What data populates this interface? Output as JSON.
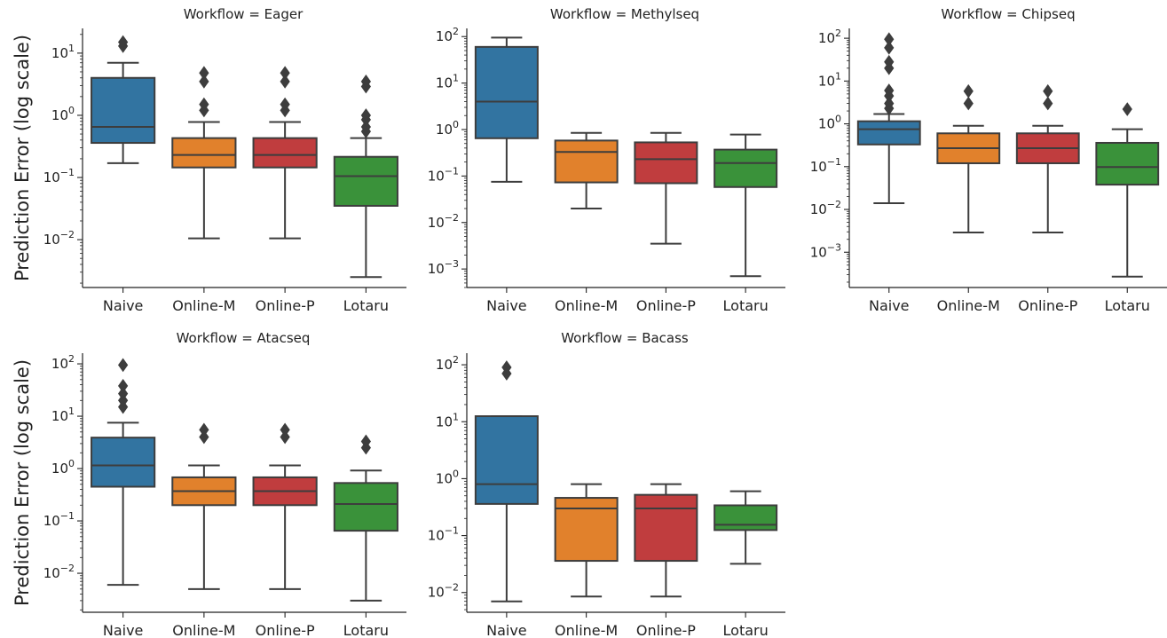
{
  "chart_data": [
    {
      "type": "box",
      "title": "Workflow = Eager",
      "ylabel": "Prediction Error (log scale)",
      "yscale": "log",
      "ylim": [
        0.0017,
        25
      ],
      "y_tick_labels": [
        "10^1",
        "10^0",
        "10^-1",
        "10^-2"
      ],
      "categories": [
        "Naive",
        "Online-M",
        "Online-P",
        "Lotaru"
      ],
      "colors": [
        "#3274a1",
        "#e1812c",
        "#c03d3e",
        "#3a923a"
      ],
      "boxes": [
        {
          "category": "Naive",
          "whislo": 0.17,
          "q1": 0.36,
          "med": 0.65,
          "q3": 4.0,
          "whishi": 7.0,
          "fliers": [
            13,
            15
          ]
        },
        {
          "category": "Online-M",
          "whislo": 0.0105,
          "q1": 0.145,
          "med": 0.23,
          "q3": 0.43,
          "whishi": 0.78,
          "fliers": [
            1.2,
            1.5,
            3.5,
            4.8
          ]
        },
        {
          "category": "Online-P",
          "whislo": 0.0105,
          "q1": 0.145,
          "med": 0.23,
          "q3": 0.43,
          "whishi": 0.78,
          "fliers": [
            1.2,
            1.5,
            3.5,
            4.8
          ]
        },
        {
          "category": "Lotaru",
          "whislo": 0.0025,
          "q1": 0.035,
          "med": 0.105,
          "q3": 0.215,
          "whishi": 0.43,
          "fliers": [
            0.55,
            0.65,
            0.85,
            1.0,
            2.9,
            3.5
          ]
        }
      ]
    },
    {
      "type": "box",
      "title": "Workflow = Methylseq",
      "ylabel": "",
      "yscale": "log",
      "ylim": [
        0.0004,
        150
      ],
      "y_tick_labels": [
        "10^2",
        "10^1",
        "10^0",
        "10^-1",
        "10^-2",
        "10^-3"
      ],
      "categories": [
        "Naive",
        "Online-M",
        "Online-P",
        "Lotaru"
      ],
      "colors": [
        "#3274a1",
        "#e1812c",
        "#c03d3e",
        "#3a923a"
      ],
      "boxes": [
        {
          "category": "Naive",
          "whislo": 0.075,
          "q1": 0.65,
          "med": 4.0,
          "q3": 60,
          "whishi": 95,
          "fliers": []
        },
        {
          "category": "Online-M",
          "whislo": 0.02,
          "q1": 0.073,
          "med": 0.33,
          "q3": 0.58,
          "whishi": 0.85,
          "fliers": []
        },
        {
          "category": "Online-P",
          "whislo": 0.0035,
          "q1": 0.07,
          "med": 0.23,
          "q3": 0.53,
          "whishi": 0.85,
          "fliers": []
        },
        {
          "category": "Lotaru",
          "whislo": 0.0007,
          "q1": 0.058,
          "med": 0.19,
          "q3": 0.37,
          "whishi": 0.78,
          "fliers": []
        }
      ]
    },
    {
      "type": "box",
      "title": "Workflow = Chipseq",
      "ylabel": "",
      "yscale": "log",
      "ylim": [
        0.00015,
        170
      ],
      "y_tick_labels": [
        "10^2",
        "10^1",
        "10^0",
        "10^-1",
        "10^-2",
        "10^-3"
      ],
      "categories": [
        "Naive",
        "Online-M",
        "Online-P",
        "Lotaru"
      ],
      "colors": [
        "#3274a1",
        "#e1812c",
        "#c03d3e",
        "#3a923a"
      ],
      "boxes": [
        {
          "category": "Naive",
          "whislo": 0.014,
          "q1": 0.33,
          "med": 0.75,
          "q3": 1.15,
          "whishi": 1.7,
          "fliers": [
            2.3,
            3.0,
            4.5,
            6.0,
            20,
            28,
            60,
            95
          ]
        },
        {
          "category": "Online-M",
          "whislo": 0.0029,
          "q1": 0.12,
          "med": 0.27,
          "q3": 0.6,
          "whishi": 0.9,
          "fliers": [
            3.0,
            5.8
          ]
        },
        {
          "category": "Online-P",
          "whislo": 0.0029,
          "q1": 0.12,
          "med": 0.27,
          "q3": 0.6,
          "whishi": 0.9,
          "fliers": [
            3.0,
            5.8
          ]
        },
        {
          "category": "Lotaru",
          "whislo": 0.00027,
          "q1": 0.038,
          "med": 0.098,
          "q3": 0.36,
          "whishi": 0.75,
          "fliers": [
            2.2
          ]
        }
      ]
    },
    {
      "type": "box",
      "title": "Workflow = Atacseq",
      "ylabel": "Prediction Error (log scale)",
      "yscale": "log",
      "ylim": [
        0.0018,
        160
      ],
      "y_tick_labels": [
        "10^2",
        "10^1",
        "10^0",
        "10^-1",
        "10^-2"
      ],
      "categories": [
        "Naive",
        "Online-M",
        "Online-P",
        "Lotaru"
      ],
      "colors": [
        "#3274a1",
        "#e1812c",
        "#c03d3e",
        "#3a923a"
      ],
      "boxes": [
        {
          "category": "Naive",
          "whislo": 0.006,
          "q1": 0.45,
          "med": 1.15,
          "q3": 3.9,
          "whishi": 7.5,
          "fliers": [
            15,
            20,
            27,
            38,
            95
          ]
        },
        {
          "category": "Online-M",
          "whislo": 0.005,
          "q1": 0.2,
          "med": 0.37,
          "q3": 0.68,
          "whishi": 1.15,
          "fliers": [
            4.0,
            5.5
          ]
        },
        {
          "category": "Online-P",
          "whislo": 0.005,
          "q1": 0.2,
          "med": 0.37,
          "q3": 0.68,
          "whishi": 1.15,
          "fliers": [
            4.0,
            5.5
          ]
        },
        {
          "category": "Lotaru",
          "whislo": 0.003,
          "q1": 0.065,
          "med": 0.21,
          "q3": 0.53,
          "whishi": 0.92,
          "fliers": [
            2.5,
            3.3
          ]
        }
      ]
    },
    {
      "type": "box",
      "title": "Workflow = Bacass",
      "ylabel": "",
      "yscale": "log",
      "ylim": [
        0.0045,
        160
      ],
      "y_tick_labels": [
        "10^2",
        "10^1",
        "10^0",
        "10^-1",
        "10^-2"
      ],
      "categories": [
        "Naive",
        "Online-M",
        "Online-P",
        "Lotaru"
      ],
      "colors": [
        "#3274a1",
        "#e1812c",
        "#c03d3e",
        "#3a923a"
      ],
      "boxes": [
        {
          "category": "Naive",
          "whislo": 0.007,
          "q1": 0.36,
          "med": 0.8,
          "q3": 12.5,
          "whishi": 12.5,
          "fliers": [
            70,
            90
          ]
        },
        {
          "category": "Online-M",
          "whislo": 0.0085,
          "q1": 0.036,
          "med": 0.3,
          "q3": 0.46,
          "whishi": 0.8,
          "fliers": []
        },
        {
          "category": "Online-P",
          "whislo": 0.0085,
          "q1": 0.036,
          "med": 0.3,
          "q3": 0.52,
          "whishi": 0.8,
          "fliers": []
        },
        {
          "category": "Lotaru",
          "whislo": 0.032,
          "q1": 0.125,
          "med": 0.155,
          "q3": 0.34,
          "whishi": 0.6,
          "fliers": []
        }
      ]
    }
  ]
}
